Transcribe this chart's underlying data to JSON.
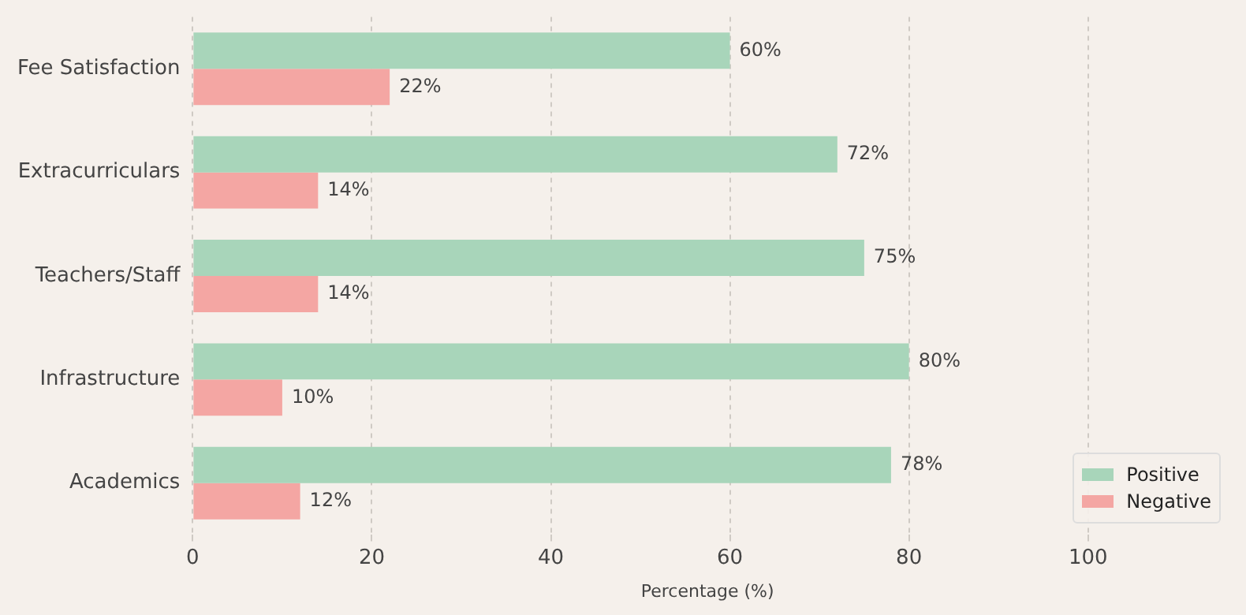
{
  "chart_data": {
    "type": "bar",
    "orientation": "horizontal",
    "xlabel": "Percentage (%)",
    "categories": [
      "Fee Satisfaction",
      "Extracurriculars",
      "Teachers/Staff",
      "Infrastructure",
      "Academics"
    ],
    "series": [
      {
        "name": "Positive",
        "color": "#a8d5ba",
        "values": [
          60,
          72,
          75,
          80,
          78
        ],
        "value_labels": [
          "60%",
          "72%",
          "75%",
          "80%",
          "78%"
        ]
      },
      {
        "name": "Negative",
        "color": "#f4a6a3",
        "values": [
          22,
          14,
          14,
          10,
          12
        ],
        "value_labels": [
          "22%",
          "14%",
          "14%",
          "10%",
          "12%"
        ]
      }
    ],
    "xlim": [
      0,
      115
    ],
    "xticks": [
      0,
      20,
      40,
      60,
      80,
      100
    ],
    "grid": "x",
    "legend": "bottom right"
  }
}
